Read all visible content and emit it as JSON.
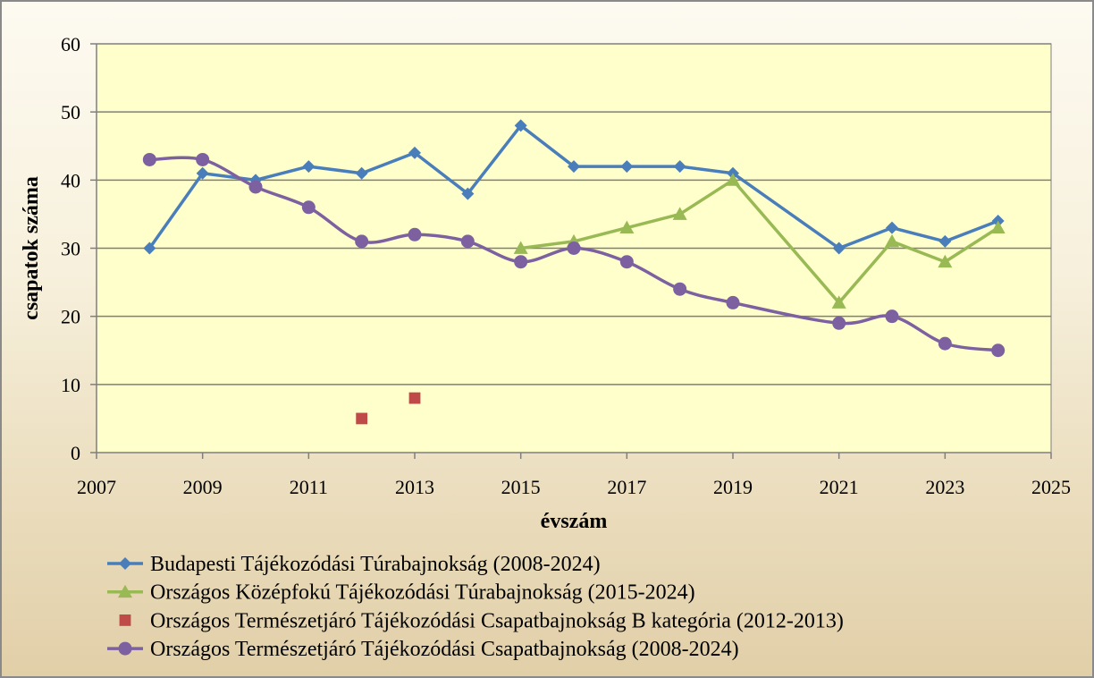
{
  "chart_data": {
    "type": "scatter",
    "xlabel": "évszám",
    "ylabel": "csapatok száma",
    "xlim": [
      2007,
      2025
    ],
    "ylim": [
      0,
      60
    ],
    "xticks": [
      "2007",
      "2009",
      "2011",
      "2013",
      "2015",
      "2017",
      "2019",
      "2021",
      "2023",
      "2025"
    ],
    "yticks": [
      "0",
      "10",
      "20",
      "30",
      "40",
      "50",
      "60"
    ],
    "grid": true,
    "plot_background": "#ffffcc",
    "legend_position": "bottom",
    "series": [
      {
        "name": "Budapesti Tájékozódási Túrabajnokság (2008-2024)",
        "color": "#4a7ebb",
        "marker": "diamond",
        "line": true,
        "x": [
          2008,
          2009,
          2010,
          2011,
          2012,
          2013,
          2014,
          2015,
          2016,
          2017,
          2018,
          2019,
          2021,
          2022,
          2023,
          2024
        ],
        "y": [
          30,
          41,
          40,
          42,
          41,
          44,
          38,
          48,
          42,
          42,
          42,
          41,
          30,
          33,
          31,
          34
        ]
      },
      {
        "name": "Országos Középfokú Tájékozódási Túrabajnokság (2015-2024)",
        "color": "#98b954",
        "marker": "triangle",
        "line": true,
        "x": [
          2015,
          2016,
          2017,
          2018,
          2019,
          2021,
          2022,
          2023,
          2024
        ],
        "y": [
          30,
          31,
          33,
          35,
          40,
          22,
          31,
          28,
          33
        ]
      },
      {
        "name": "Országos Természetjáró Tájékozódási Csapatbajnokság B kategória (2012-2013)",
        "color": "#be4b48",
        "marker": "square",
        "line": false,
        "x": [
          2012,
          2013
        ],
        "y": [
          5,
          8
        ]
      },
      {
        "name": "Országos Természetjáró Tájékozódási Csapatbajnokság (2008-2024)",
        "color": "#7d60a0",
        "marker": "circle",
        "line": true,
        "x": [
          2008,
          2009,
          2010,
          2011,
          2012,
          2013,
          2014,
          2015,
          2016,
          2017,
          2018,
          2019,
          2021,
          2022,
          2023,
          2024
        ],
        "y": [
          43,
          43,
          39,
          36,
          31,
          32,
          31,
          28,
          30,
          28,
          24,
          22,
          19,
          20,
          16,
          15
        ]
      }
    ]
  }
}
